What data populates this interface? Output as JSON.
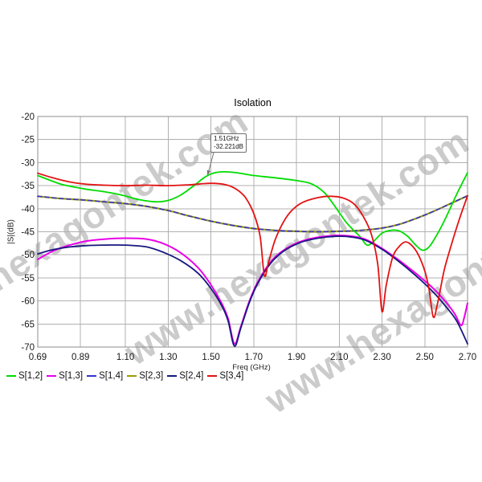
{
  "chart": {
    "title": "Isolation",
    "x_label": "Freq (GHz)",
    "y_label": "|S|(dB)",
    "watermark_text": "www.hexagontek.com",
    "annotation": {
      "line1": "1.51GHz",
      "line2": "-32.221dB"
    }
  },
  "legend": {
    "items": [
      {
        "label": "S[1,2]",
        "color": "#00dc00"
      },
      {
        "label": "S[1,3]",
        "color": "#ea00ea"
      },
      {
        "label": "S[1,4]",
        "color": "#3535cd"
      },
      {
        "label": "S[2,3]",
        "color": "#9c9c00"
      },
      {
        "label": "S[2,4]",
        "color": "#17177f"
      },
      {
        "label": "S[3,4]",
        "color": "#e31212"
      }
    ]
  },
  "colors": {
    "grid": "#b0b0b0",
    "plot_border": "#8c8c8c",
    "tick_text": "#1a1a1a"
  },
  "chart_data": {
    "type": "line",
    "title": "Isolation",
    "xlabel": "Freq (GHz)",
    "ylabel": "|S|(dB)",
    "xlim": [
      0.69,
      2.7
    ],
    "ylim": [
      -70,
      -20
    ],
    "grid": true,
    "legend_position": "bottom-left",
    "x_ticks": {
      "values": [
        0.69,
        0.89,
        1.1,
        1.3,
        1.5,
        1.7,
        1.9,
        2.1,
        2.3,
        2.5,
        2.7
      ],
      "labels": [
        "0.69",
        "0.89",
        "1.10",
        "1.30",
        "1.50",
        "1.70",
        "1.90",
        "2.10",
        "2.30",
        "2.50",
        "2.70"
      ]
    },
    "y_ticks": {
      "values": [
        -20,
        -25,
        -30,
        -35,
        -40,
        -45,
        -50,
        -55,
        -60,
        -65,
        -70
      ],
      "labels": [
        "-20",
        "-25",
        "-30",
        "-35",
        "-40",
        "-45",
        "-50",
        "-55",
        "-60",
        "-65",
        "-70"
      ]
    },
    "annotation": {
      "x": 1.51,
      "y": -32.221,
      "text": [
        "1.51GHz",
        "-32.221dB"
      ]
    },
    "series": [
      {
        "name": "S[1,2]",
        "color": "#00dc00",
        "line_style": "solid",
        "width": 1.8,
        "points": [
          [
            0.69,
            -32.8
          ],
          [
            0.74,
            -33.7
          ],
          [
            0.8,
            -34.7
          ],
          [
            0.86,
            -35.3
          ],
          [
            0.92,
            -35.8
          ],
          [
            1.0,
            -36.3
          ],
          [
            1.08,
            -37.0
          ],
          [
            1.16,
            -38.0
          ],
          [
            1.24,
            -38.5
          ],
          [
            1.3,
            -38.2
          ],
          [
            1.36,
            -37.0
          ],
          [
            1.42,
            -35.0
          ],
          [
            1.47,
            -33.2
          ],
          [
            1.51,
            -32.3
          ],
          [
            1.56,
            -32.0
          ],
          [
            1.62,
            -32.2
          ],
          [
            1.7,
            -32.8
          ],
          [
            1.8,
            -33.3
          ],
          [
            1.9,
            -33.9
          ],
          [
            1.97,
            -34.6
          ],
          [
            2.03,
            -36.5
          ],
          [
            2.08,
            -39.5
          ],
          [
            2.13,
            -42.8
          ],
          [
            2.17,
            -44.8
          ],
          [
            2.2,
            -46.2
          ],
          [
            2.23,
            -47.9
          ],
          [
            2.26,
            -47.1
          ],
          [
            2.3,
            -45.3
          ],
          [
            2.34,
            -44.7
          ],
          [
            2.38,
            -44.8
          ],
          [
            2.42,
            -46.0
          ],
          [
            2.46,
            -48.0
          ],
          [
            2.49,
            -49.0
          ],
          [
            2.52,
            -48.3
          ],
          [
            2.56,
            -45.4
          ],
          [
            2.6,
            -41.8
          ],
          [
            2.65,
            -36.8
          ],
          [
            2.7,
            -32.2
          ]
        ]
      },
      {
        "name": "S[1,3]",
        "color": "#ea00ea",
        "line_style": "solid",
        "width": 2.0,
        "points": [
          [
            0.69,
            -51.0
          ],
          [
            0.76,
            -49.2
          ],
          [
            0.84,
            -47.9
          ],
          [
            0.92,
            -47.0
          ],
          [
            1.0,
            -46.6
          ],
          [
            1.1,
            -46.4
          ],
          [
            1.2,
            -46.6
          ],
          [
            1.28,
            -47.6
          ],
          [
            1.36,
            -49.6
          ],
          [
            1.44,
            -52.8
          ],
          [
            1.5,
            -56.5
          ],
          [
            1.55,
            -60.5
          ],
          [
            1.58,
            -63.8
          ],
          [
            1.61,
            -69.3
          ],
          [
            1.64,
            -65.5
          ],
          [
            1.68,
            -60.0
          ],
          [
            1.72,
            -55.8
          ],
          [
            1.78,
            -51.5
          ],
          [
            1.84,
            -49.0
          ],
          [
            1.92,
            -47.1
          ],
          [
            2.0,
            -46.2
          ],
          [
            2.08,
            -45.8
          ],
          [
            2.15,
            -45.9
          ],
          [
            2.22,
            -46.6
          ],
          [
            2.3,
            -48.6
          ],
          [
            2.38,
            -51.2
          ],
          [
            2.46,
            -54.1
          ],
          [
            2.54,
            -57.3
          ],
          [
            2.6,
            -60.3
          ],
          [
            2.64,
            -62.8
          ],
          [
            2.67,
            -65.3
          ],
          [
            2.685,
            -63.5
          ],
          [
            2.7,
            -60.5
          ]
        ]
      },
      {
        "name": "S[1,4]",
        "color": "#3535cd",
        "line_style": "dashed",
        "width": 1.6,
        "points": [
          [
            0.69,
            -37.3
          ],
          [
            0.8,
            -37.8
          ],
          [
            0.9,
            -38.1
          ],
          [
            1.0,
            -38.5
          ],
          [
            1.1,
            -38.9
          ],
          [
            1.2,
            -39.5
          ],
          [
            1.3,
            -40.4
          ],
          [
            1.4,
            -41.6
          ],
          [
            1.5,
            -42.7
          ],
          [
            1.6,
            -43.6
          ],
          [
            1.7,
            -44.3
          ],
          [
            1.8,
            -44.7
          ],
          [
            1.9,
            -44.9
          ],
          [
            2.0,
            -45.0
          ],
          [
            2.1,
            -44.9
          ],
          [
            2.2,
            -44.7
          ],
          [
            2.3,
            -44.2
          ],
          [
            2.38,
            -43.4
          ],
          [
            2.46,
            -42.1
          ],
          [
            2.54,
            -40.6
          ],
          [
            2.62,
            -38.9
          ],
          [
            2.7,
            -37.2
          ]
        ]
      },
      {
        "name": "S[2,3]",
        "color": "#9c9c00",
        "line_style": "solid",
        "width": 2.2,
        "points": [
          [
            0.69,
            -37.3
          ],
          [
            0.8,
            -37.8
          ],
          [
            0.9,
            -38.1
          ],
          [
            1.0,
            -38.5
          ],
          [
            1.1,
            -38.9
          ],
          [
            1.2,
            -39.5
          ],
          [
            1.3,
            -40.4
          ],
          [
            1.4,
            -41.6
          ],
          [
            1.5,
            -42.7
          ],
          [
            1.6,
            -43.6
          ],
          [
            1.7,
            -44.3
          ],
          [
            1.8,
            -44.7
          ],
          [
            1.9,
            -44.9
          ],
          [
            2.0,
            -45.0
          ],
          [
            2.1,
            -44.9
          ],
          [
            2.2,
            -44.7
          ],
          [
            2.3,
            -44.2
          ],
          [
            2.38,
            -43.4
          ],
          [
            2.46,
            -42.1
          ],
          [
            2.54,
            -40.6
          ],
          [
            2.62,
            -38.9
          ],
          [
            2.7,
            -37.2
          ]
        ]
      },
      {
        "name": "S[2,4]",
        "color": "#17177f",
        "line_style": "solid",
        "width": 1.8,
        "points": [
          [
            0.69,
            -49.8
          ],
          [
            0.76,
            -48.9
          ],
          [
            0.84,
            -48.3
          ],
          [
            0.92,
            -48.0
          ],
          [
            1.0,
            -47.9
          ],
          [
            1.1,
            -47.9
          ],
          [
            1.2,
            -48.3
          ],
          [
            1.28,
            -49.5
          ],
          [
            1.36,
            -51.3
          ],
          [
            1.44,
            -54.0
          ],
          [
            1.5,
            -57.3
          ],
          [
            1.55,
            -61.0
          ],
          [
            1.58,
            -64.3
          ],
          [
            1.61,
            -69.8
          ],
          [
            1.64,
            -65.8
          ],
          [
            1.68,
            -60.3
          ],
          [
            1.72,
            -56.1
          ],
          [
            1.78,
            -51.8
          ],
          [
            1.84,
            -49.2
          ],
          [
            1.92,
            -47.3
          ],
          [
            2.0,
            -46.4
          ],
          [
            2.08,
            -46.0
          ],
          [
            2.15,
            -46.1
          ],
          [
            2.22,
            -46.8
          ],
          [
            2.3,
            -48.8
          ],
          [
            2.38,
            -51.5
          ],
          [
            2.46,
            -54.6
          ],
          [
            2.54,
            -58.1
          ],
          [
            2.6,
            -61.3
          ],
          [
            2.65,
            -64.4
          ],
          [
            2.7,
            -69.3
          ]
        ]
      },
      {
        "name": "S[3,4]",
        "color": "#e31212",
        "line_style": "solid",
        "width": 1.8,
        "points": [
          [
            0.69,
            -32.3
          ],
          [
            0.76,
            -33.3
          ],
          [
            0.84,
            -34.2
          ],
          [
            0.92,
            -34.7
          ],
          [
            1.0,
            -34.9
          ],
          [
            1.1,
            -35.0
          ],
          [
            1.2,
            -34.9
          ],
          [
            1.3,
            -35.0
          ],
          [
            1.4,
            -34.8
          ],
          [
            1.5,
            -34.5
          ],
          [
            1.57,
            -34.8
          ],
          [
            1.62,
            -35.8
          ],
          [
            1.66,
            -37.5
          ],
          [
            1.7,
            -41.0
          ],
          [
            1.73,
            -46.0
          ],
          [
            1.75,
            -54.5
          ],
          [
            1.77,
            -51.5
          ],
          [
            1.8,
            -46.8
          ],
          [
            1.84,
            -42.8
          ],
          [
            1.88,
            -40.3
          ],
          [
            1.93,
            -38.6
          ],
          [
            2.0,
            -37.6
          ],
          [
            2.06,
            -37.3
          ],
          [
            2.12,
            -37.7
          ],
          [
            2.17,
            -39.0
          ],
          [
            2.21,
            -41.5
          ],
          [
            2.25,
            -45.5
          ],
          [
            2.28,
            -52.0
          ],
          [
            2.3,
            -62.3
          ],
          [
            2.32,
            -56.5
          ],
          [
            2.35,
            -50.5
          ],
          [
            2.38,
            -48.2
          ],
          [
            2.41,
            -47.2
          ],
          [
            2.44,
            -48.0
          ],
          [
            2.47,
            -50.0
          ],
          [
            2.5,
            -53.5
          ],
          [
            2.52,
            -57.5
          ],
          [
            2.54,
            -63.5
          ],
          [
            2.56,
            -60.5
          ],
          [
            2.59,
            -53.5
          ],
          [
            2.62,
            -48.5
          ],
          [
            2.66,
            -42.5
          ],
          [
            2.7,
            -37.2
          ]
        ]
      }
    ]
  }
}
